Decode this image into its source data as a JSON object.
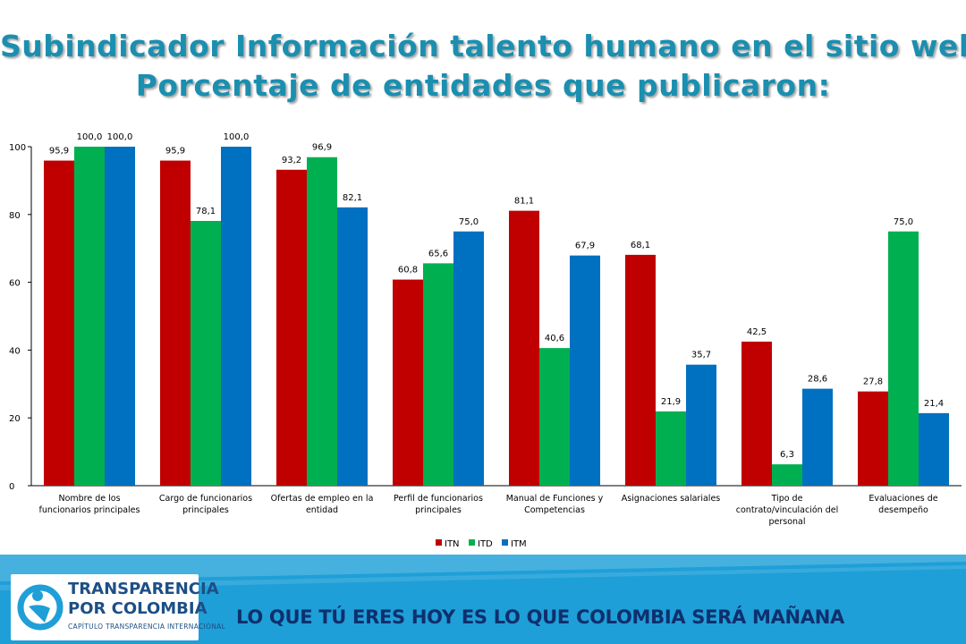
{
  "chart_data": {
    "type": "bar",
    "title_lines": [
      "Subindicador Información talento humano en el sitio web",
      "Porcentaje de entidades que publicaron:"
    ],
    "categories": [
      [
        "Nombre de los",
        "funcionarios principales"
      ],
      [
        "Cargo de funcionarios",
        "principales"
      ],
      [
        "Ofertas de empleo en la",
        "entidad"
      ],
      [
        "Perfil  de funcionarios",
        "principales"
      ],
      [
        "Manual de Funciones y",
        "Competencias"
      ],
      [
        "Asignaciones salariales"
      ],
      [
        "Tipo de",
        "contrato/vinculación del",
        "personal"
      ],
      [
        "Evaluaciones de",
        "desempeño"
      ]
    ],
    "series": [
      {
        "name": "ITN",
        "color": "#c00000",
        "values": [
          95.9,
          95.9,
          93.2,
          60.8,
          81.1,
          68.1,
          42.5,
          27.8
        ],
        "labels": [
          "95,9",
          "95,9",
          "93,2",
          "60,8",
          "81,1",
          "68,1",
          "42,5",
          "27,8"
        ]
      },
      {
        "name": "ITD",
        "color": "#00b050",
        "values": [
          100.0,
          78.1,
          96.9,
          65.6,
          40.6,
          21.9,
          6.3,
          75.0
        ],
        "labels": [
          "100,0",
          "78,1",
          "96,9",
          "65,6",
          "40,6",
          "21,9",
          "6,3",
          "75,0"
        ]
      },
      {
        "name": "ITM",
        "color": "#0070c0",
        "values": [
          100.0,
          100.0,
          82.1,
          75.0,
          67.9,
          35.7,
          28.6,
          21.4
        ],
        "labels": [
          "100,0",
          "100,0",
          "82,1",
          "75,0",
          "67,9",
          "35,7",
          "28,6",
          "21,4"
        ]
      }
    ],
    "ylim": [
      0,
      100
    ],
    "yticks": [
      "0",
      "20",
      "40",
      "60",
      "80",
      "100"
    ],
    "grid": false,
    "legend_position": "bottom-center"
  },
  "footer": {
    "brand_line1": "TRANSPARENCIA",
    "brand_line2": "POR COLOMBIA",
    "brand_line3": "CAPÍTULO TRANSPARENCIA INTERNACIONAL",
    "slogan": "LO QUE TÚ ERES HOY ES LO QUE COLOMBIA SERÁ MAÑANA",
    "background_color": "#1e9fd8"
  }
}
